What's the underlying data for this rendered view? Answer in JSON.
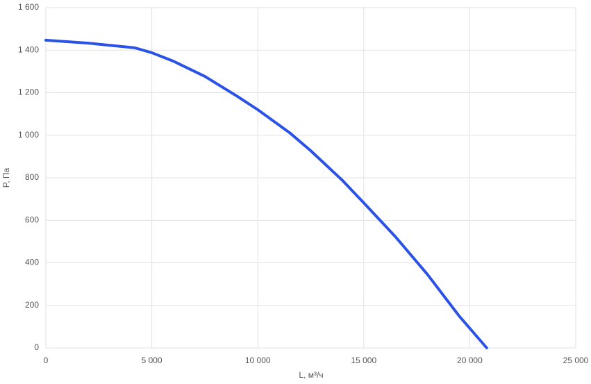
{
  "chart_data": {
    "type": "line",
    "x_label": "L, м³/ч",
    "y_label": "P, Па",
    "xlim": [
      0,
      25000
    ],
    "xticks": [
      0,
      {
        "value": 5000,
        "label": "5 000"
      },
      {
        "value": 10000,
        "label": "10 000"
      },
      {
        "value": 15000,
        "label": "15 000"
      },
      {
        "value": 20000,
        "label": "20 000"
      },
      {
        "value": 25000,
        "label": "25 000"
      }
    ],
    "ylim": [
      0,
      1600
    ],
    "yticks": [
      0,
      200,
      400,
      600,
      800,
      {
        "value": 1000,
        "label": "1 000"
      },
      {
        "value": 1200,
        "label": "1 200"
      },
      {
        "value": 1400,
        "label": "1 400"
      },
      {
        "value": 1600,
        "label": "1 600"
      }
    ],
    "grid": true,
    "series": [
      {
        "color": "#2a52e6",
        "x": [
          0,
          2000,
          4200,
          5000,
          6000,
          7500,
          9000,
          10000,
          11500,
          12500,
          14000,
          15000,
          16500,
          18000,
          19500,
          20800
        ],
        "values": [
          1447,
          1433,
          1411,
          1388,
          1349,
          1277,
          1185,
          1120,
          1012,
          927,
          787,
          682,
          522,
          346,
          150,
          0
        ]
      }
    ]
  }
}
